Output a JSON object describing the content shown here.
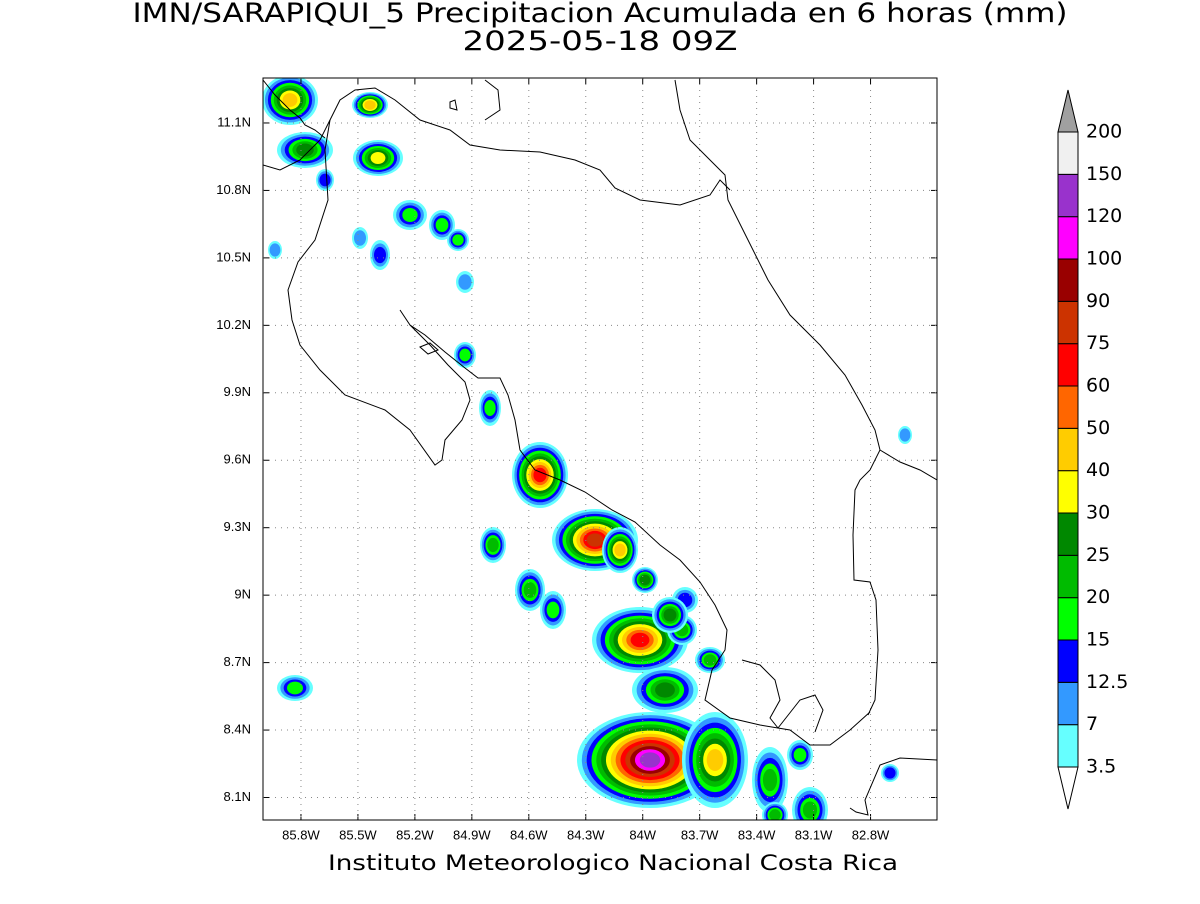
{
  "title": "IMN/SARAPIQUI_5 Precipitacion Acumulada en 6 horas (mm)",
  "subtitle": "2025-05-18 09Z",
  "footer": "Instituto Meteorologico Nacional Costa Rica",
  "map": {
    "lon_lim": [
      -86.0,
      -82.45
    ],
    "lat_lim": [
      8.0,
      11.3
    ],
    "grid": true,
    "lon_ticks": [
      {
        "value": -85.8,
        "label": "85.8W"
      },
      {
        "value": -85.5,
        "label": "85.5W"
      },
      {
        "value": -85.2,
        "label": "85.2W"
      },
      {
        "value": -84.9,
        "label": "84.9W"
      },
      {
        "value": -84.6,
        "label": "84.6W"
      },
      {
        "value": -84.3,
        "label": "84.3W"
      },
      {
        "value": -84.0,
        "label": "84W"
      },
      {
        "value": -83.7,
        "label": "83.7W"
      },
      {
        "value": -83.4,
        "label": "83.4W"
      },
      {
        "value": -83.1,
        "label": "83.1W"
      },
      {
        "value": -82.8,
        "label": "82.8W"
      }
    ],
    "lat_ticks": [
      {
        "value": 11.1,
        "label": "11.1N"
      },
      {
        "value": 10.8,
        "label": "10.8N"
      },
      {
        "value": 10.5,
        "label": "10.5N"
      },
      {
        "value": 10.2,
        "label": "10.2N"
      },
      {
        "value": 9.9,
        "label": "9.9N"
      },
      {
        "value": 9.6,
        "label": "9.6N"
      },
      {
        "value": 9.3,
        "label": "9.3N"
      },
      {
        "value": 9.0,
        "label": "9N"
      },
      {
        "value": 8.7,
        "label": "8.7N"
      },
      {
        "value": 8.4,
        "label": "8.4N"
      },
      {
        "value": 8.1,
        "label": "8.1N"
      }
    ]
  },
  "legend": {
    "levels": [
      3.5,
      7,
      12.5,
      15,
      20,
      25,
      30,
      40,
      50,
      60,
      75,
      90,
      100,
      120,
      150,
      200
    ],
    "colors": [
      "#66ffff",
      "#3399ff",
      "#0000ff",
      "#00ff00",
      "#00bb00",
      "#008800",
      "#ffff00",
      "#ffcc00",
      "#ff6600",
      "#ff0000",
      "#cc3300",
      "#990000",
      "#ff00ff",
      "#9932cc",
      "#f0f0f0"
    ],
    "under_color": "#ffffff",
    "over_color": "#a0a0a0"
  }
}
